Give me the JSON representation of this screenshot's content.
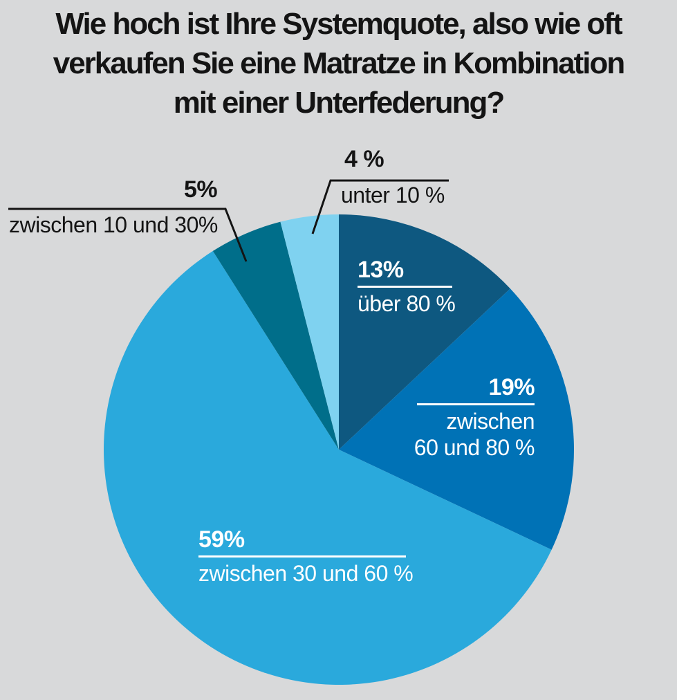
{
  "background_color": "#d8d9da",
  "title": {
    "full": "Wie hoch ist Ihre Systemquote, also wie oft verkaufen Sie eine Matratze in Kombination mit einer Unterfederung?",
    "lines": [
      "Wie hoch ist Ihre Systemquote, also wie oft",
      "verkaufen Sie eine Matratze in Kombination",
      "mit einer Unterfederung?"
    ]
  },
  "chart_data": {
    "type": "pie",
    "title": "Wie hoch ist Ihre Systemquote, also wie oft verkaufen Sie eine Matratze in Kombination mit einer Unterfederung?",
    "unit": "%",
    "start_angle": "12 o'clock",
    "direction": "clockwise",
    "total": 100,
    "slices": [
      {
        "value": 13,
        "pct_label": "13%",
        "label": "über 80 %",
        "color": "#0e5880",
        "label_placement": "inside",
        "label_color": "#ffffff"
      },
      {
        "value": 19,
        "pct_label": "19%",
        "label": "zwischen 60 und 80 %",
        "label_lines": [
          "zwischen",
          "60 und 80 %"
        ],
        "color": "#0072b6",
        "label_placement": "inside",
        "label_color": "#ffffff"
      },
      {
        "value": 59,
        "pct_label": "59%",
        "label": "zwischen 30 und 60 %",
        "color": "#2aa9dc",
        "label_placement": "inside",
        "label_color": "#ffffff"
      },
      {
        "value": 5,
        "pct_label": "5%",
        "label": "zwischen 10 und 30%",
        "color": "#006e8a",
        "label_placement": "outside",
        "label_color": "#141414"
      },
      {
        "value": 4,
        "pct_label": "4 %",
        "label": "unter 10 %",
        "color": "#7fd2f0",
        "label_placement": "outside",
        "label_color": "#141414"
      }
    ],
    "leader_line_color": "#141414"
  }
}
